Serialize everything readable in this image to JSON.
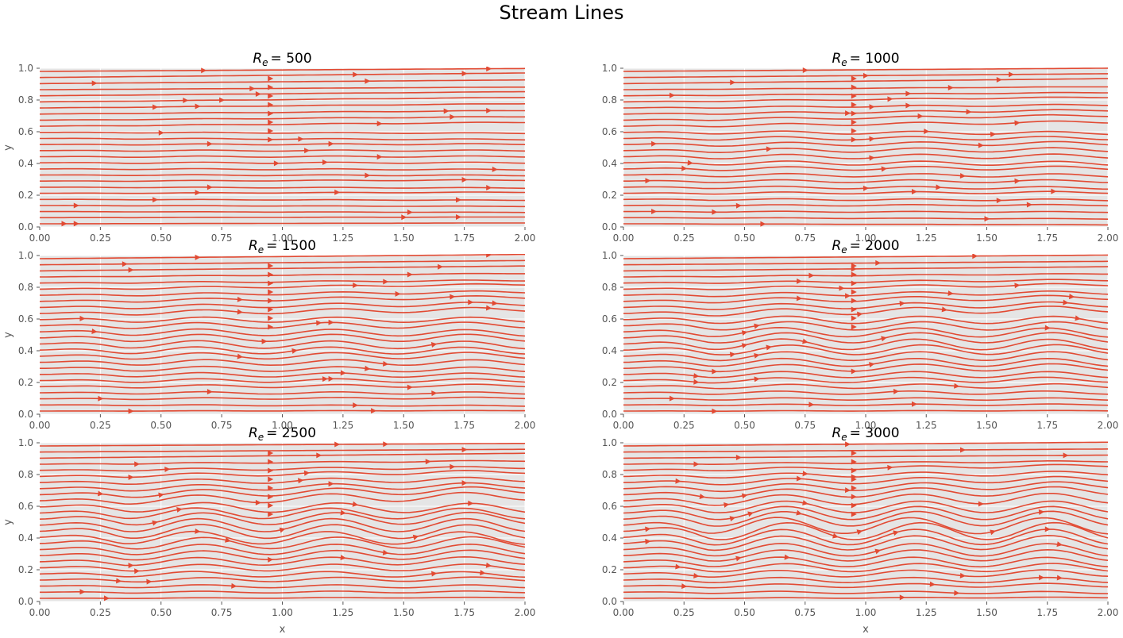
{
  "figure": {
    "suptitle": "Stream Lines",
    "xlabel": "x",
    "ylabel": "y",
    "colors": {
      "stream": "#E24A33",
      "axes_bg": "#E5E5E5",
      "grid": "#FFFFFF",
      "tick_text": "#555555"
    }
  },
  "chart_data": [
    {
      "type": "streamplot",
      "title_prefix": "R",
      "title_sub": "e",
      "title_value": "= 500",
      "reynolds": 500,
      "xlim": [
        0,
        2
      ],
      "ylim": [
        0,
        1
      ],
      "xticks": [
        "0.00",
        "0.25",
        "0.50",
        "0.75",
        "1.00",
        "1.25",
        "1.50",
        "1.75",
        "2.00"
      ],
      "yticks": [
        "0.0",
        "0.2",
        "0.4",
        "0.6",
        "0.8",
        "1.0"
      ],
      "grid": true
    },
    {
      "type": "streamplot",
      "title_prefix": "R",
      "title_sub": "e",
      "title_value": "= 1000",
      "reynolds": 1000,
      "xlim": [
        0,
        2
      ],
      "ylim": [
        0,
        1
      ],
      "xticks": [
        "0.00",
        "0.25",
        "0.50",
        "0.75",
        "1.00",
        "1.25",
        "1.50",
        "1.75",
        "2.00"
      ],
      "yticks": [
        "0.0",
        "0.2",
        "0.4",
        "0.6",
        "0.8",
        "1.0"
      ],
      "grid": true
    },
    {
      "type": "streamplot",
      "title_prefix": "R",
      "title_sub": "e",
      "title_value": "= 1500",
      "reynolds": 1500,
      "xlim": [
        0,
        2
      ],
      "ylim": [
        0,
        1
      ],
      "xticks": [
        "0.00",
        "0.25",
        "0.50",
        "0.75",
        "1.00",
        "1.25",
        "1.50",
        "1.75",
        "2.00"
      ],
      "yticks": [
        "0.0",
        "0.2",
        "0.4",
        "0.6",
        "0.8",
        "1.0"
      ],
      "grid": true
    },
    {
      "type": "streamplot",
      "title_prefix": "R",
      "title_sub": "e",
      "title_value": "= 2000",
      "reynolds": 2000,
      "xlim": [
        0,
        2
      ],
      "ylim": [
        0,
        1
      ],
      "xticks": [
        "0.00",
        "0.25",
        "0.50",
        "0.75",
        "1.00",
        "1.25",
        "1.50",
        "1.75",
        "2.00"
      ],
      "yticks": [
        "0.0",
        "0.2",
        "0.4",
        "0.6",
        "0.8",
        "1.0"
      ],
      "grid": true
    },
    {
      "type": "streamplot",
      "title_prefix": "R",
      "title_sub": "e",
      "title_value": "= 2500",
      "reynolds": 2500,
      "xlim": [
        0,
        2
      ],
      "ylim": [
        0,
        1
      ],
      "xticks": [
        "0.00",
        "0.25",
        "0.50",
        "0.75",
        "1.00",
        "1.25",
        "1.50",
        "1.75",
        "2.00"
      ],
      "yticks": [
        "0.0",
        "0.2",
        "0.4",
        "0.6",
        "0.8",
        "1.0"
      ],
      "grid": true
    },
    {
      "type": "streamplot",
      "title_prefix": "R",
      "title_sub": "e",
      "title_value": "= 3000",
      "reynolds": 3000,
      "xlim": [
        0,
        2
      ],
      "ylim": [
        0,
        1
      ],
      "xticks": [
        "0.00",
        "0.25",
        "0.50",
        "0.75",
        "1.00",
        "1.25",
        "1.50",
        "1.75",
        "2.00"
      ],
      "yticks": [
        "0.0",
        "0.2",
        "0.4",
        "0.6",
        "0.8",
        "1.0"
      ],
      "grid": true
    }
  ]
}
